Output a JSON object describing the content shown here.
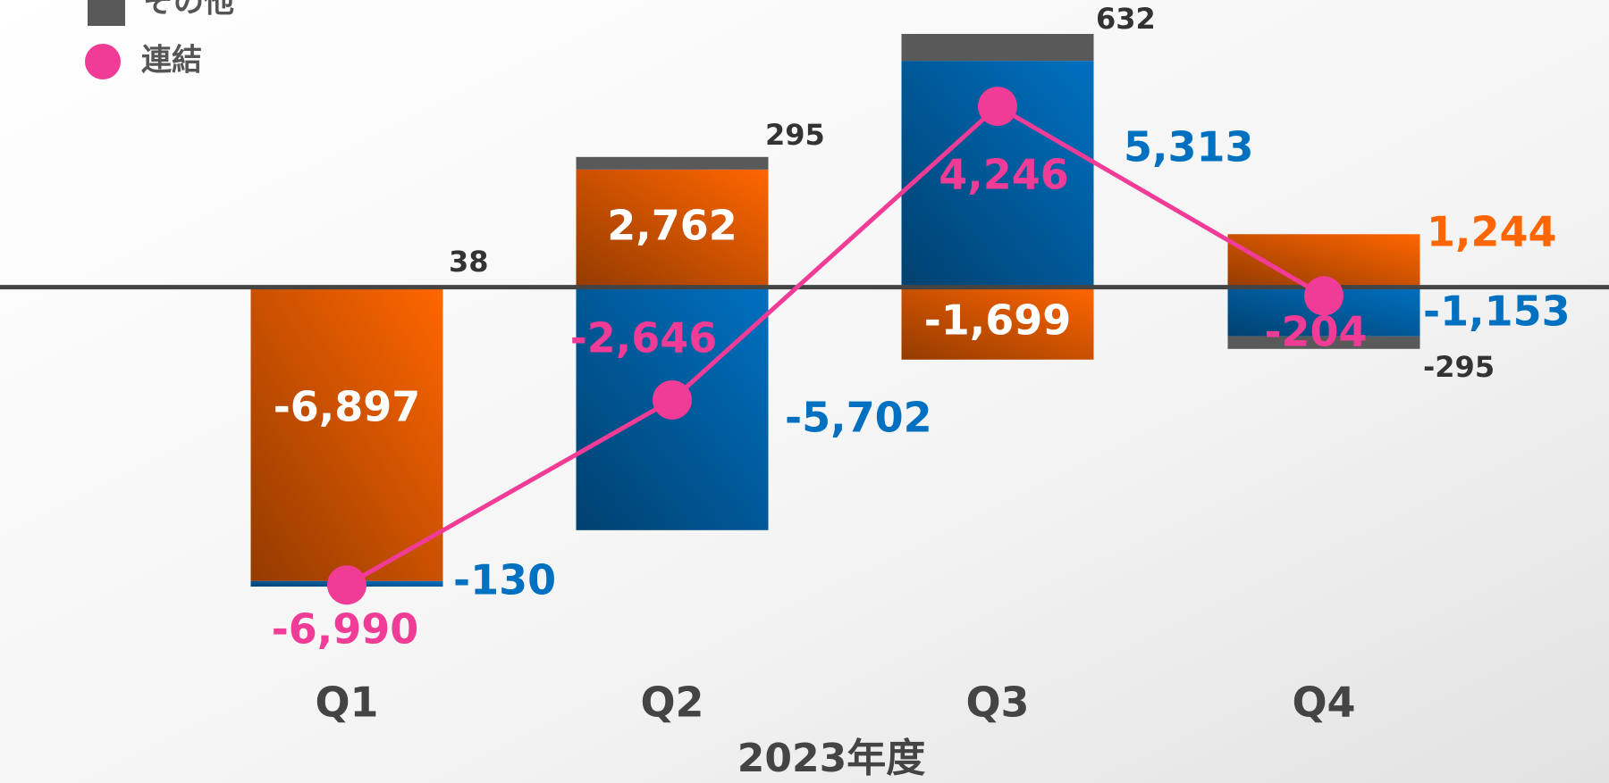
{
  "chart_data": {
    "type": "bar",
    "stacked": true,
    "categories": [
      "Q1",
      "Q2",
      "Q3",
      "Q4"
    ],
    "xlabel": "2023年度",
    "series": [
      {
        "color": "#ff6600",
        "values": [
          -6897,
          2762,
          -1699,
          1244
        ]
      },
      {
        "color": "#0070c0",
        "values": [
          -130,
          -5702,
          5313,
          -1153
        ]
      },
      {
        "name": "その他",
        "color": "#595959",
        "values": [
          38,
          295,
          632,
          -295
        ]
      },
      {
        "name": "連結",
        "type": "line",
        "color": "#f03c96",
        "values": [
          -6990,
          -2646,
          4246,
          -204
        ]
      }
    ],
    "value_labels": [
      [
        "-6,897",
        "2,762",
        "-1,699",
        "1,244"
      ],
      [
        "-130",
        "-5,702",
        "5,313",
        "-1,153"
      ],
      [
        "38",
        "295",
        "632",
        "-295"
      ],
      [
        "-6,990",
        "-2,646",
        "4,246",
        "-204"
      ]
    ]
  }
}
